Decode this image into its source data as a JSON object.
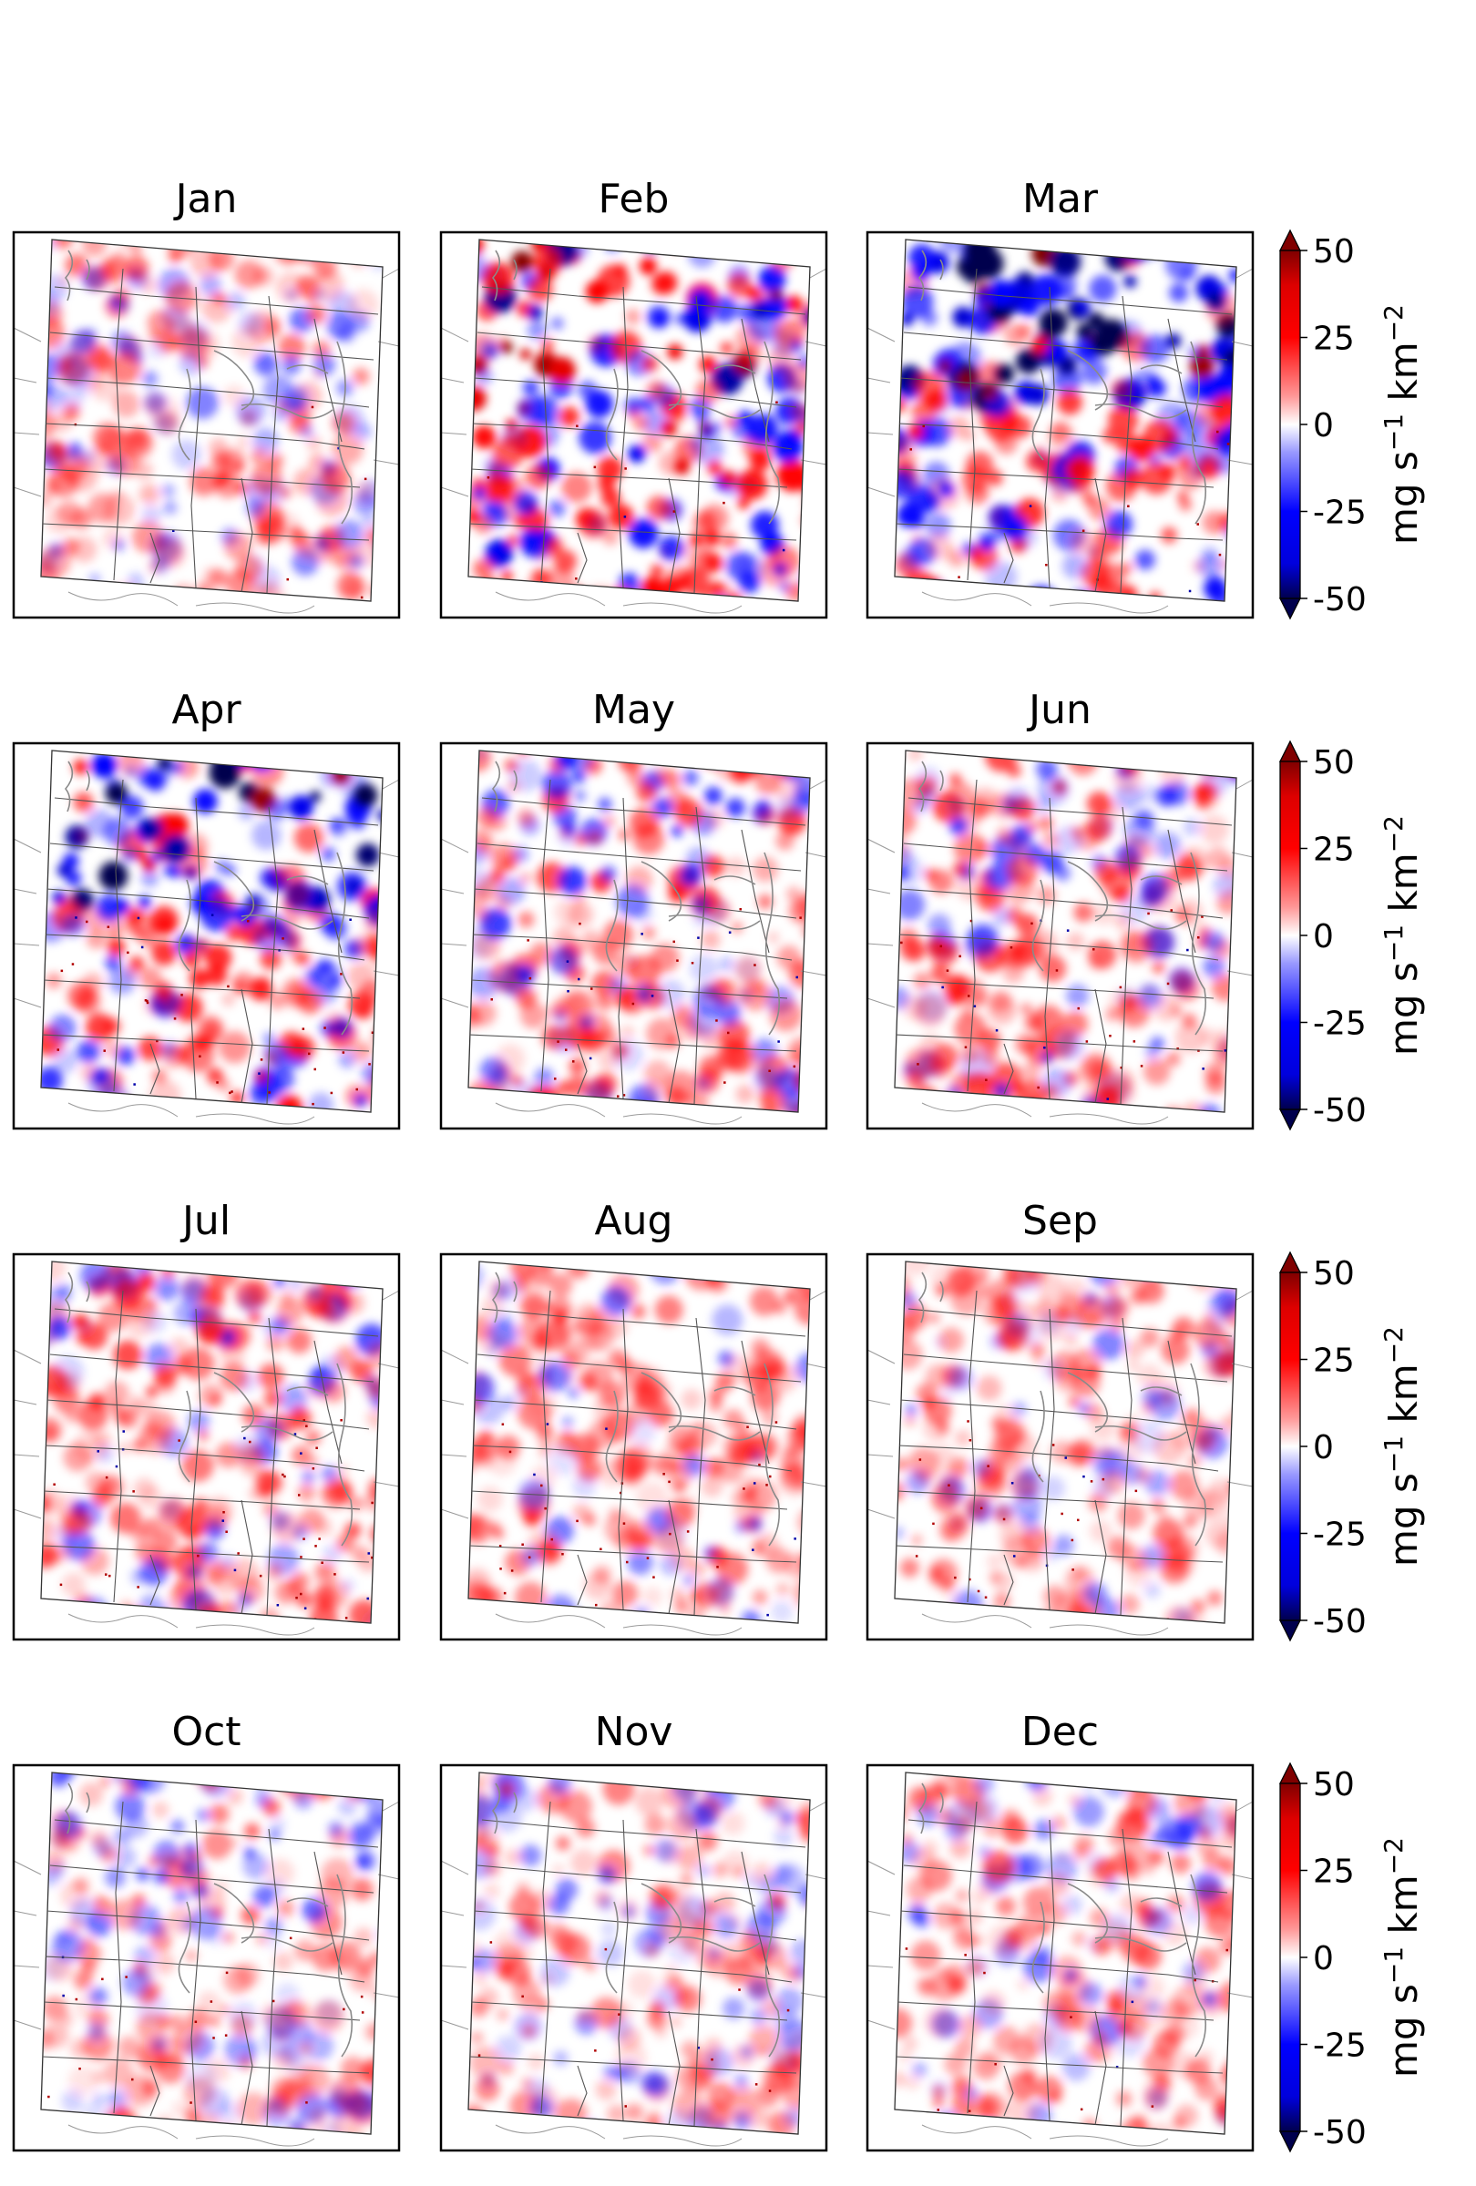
{
  "figure": {
    "rows": 4,
    "cols": 3
  },
  "chart_data": {
    "type": "heatmap",
    "description_units": "mg s⁻¹ km⁻²",
    "panels": [
      {
        "title": "Jan",
        "intensity": 0.45,
        "pos_bias": 0.7,
        "north_blue": 0.15,
        "speckle": 0.05
      },
      {
        "title": "Feb",
        "intensity": 0.9,
        "pos_bias": 0.65,
        "north_blue": 0.35,
        "speckle": 0.1
      },
      {
        "title": "Mar",
        "intensity": 0.8,
        "pos_bias": 0.55,
        "north_blue": 0.85,
        "speckle": 0.1
      },
      {
        "title": "Apr",
        "intensity": 0.75,
        "pos_bias": 0.7,
        "north_blue": 0.85,
        "speckle": 0.3
      },
      {
        "title": "May",
        "intensity": 0.55,
        "pos_bias": 0.72,
        "north_blue": 0.4,
        "speckle": 0.25
      },
      {
        "title": "Jun",
        "intensity": 0.55,
        "pos_bias": 0.78,
        "north_blue": 0.2,
        "speckle": 0.3
      },
      {
        "title": "Jul",
        "intensity": 0.55,
        "pos_bias": 0.82,
        "north_blue": 0.15,
        "speckle": 0.35
      },
      {
        "title": "Aug",
        "intensity": 0.45,
        "pos_bias": 0.85,
        "north_blue": 0.1,
        "speckle": 0.3
      },
      {
        "title": "Sep",
        "intensity": 0.4,
        "pos_bias": 0.8,
        "north_blue": 0.2,
        "speckle": 0.2
      },
      {
        "title": "Oct",
        "intensity": 0.4,
        "pos_bias": 0.7,
        "north_blue": 0.45,
        "speckle": 0.15
      },
      {
        "title": "Nov",
        "intensity": 0.4,
        "pos_bias": 0.68,
        "north_blue": 0.2,
        "speckle": 0.1
      },
      {
        "title": "Dec",
        "intensity": 0.45,
        "pos_bias": 0.75,
        "north_blue": 0.2,
        "speckle": 0.1
      }
    ],
    "colorbar": {
      "colormap": "seismic",
      "vmin": -50,
      "vmax": 50,
      "extend": "both",
      "ticks": [
        50,
        25,
        0,
        -25,
        -50
      ],
      "tick_labels": [
        "50",
        "25",
        "0",
        "-25",
        "-50"
      ],
      "label": "mg s⁻¹ km⁻²",
      "label_parts": {
        "base": "mg s",
        "exp1": "−1",
        "mid": " km",
        "exp2": "−2"
      }
    },
    "colors": {
      "neg_end": "#00004d",
      "neg": "#0000ff",
      "zero": "#ffffff",
      "pos": "#ff0000",
      "pos_end": "#800000",
      "state_lines": "#555555",
      "coast_lines": "#8a8a8a"
    }
  }
}
